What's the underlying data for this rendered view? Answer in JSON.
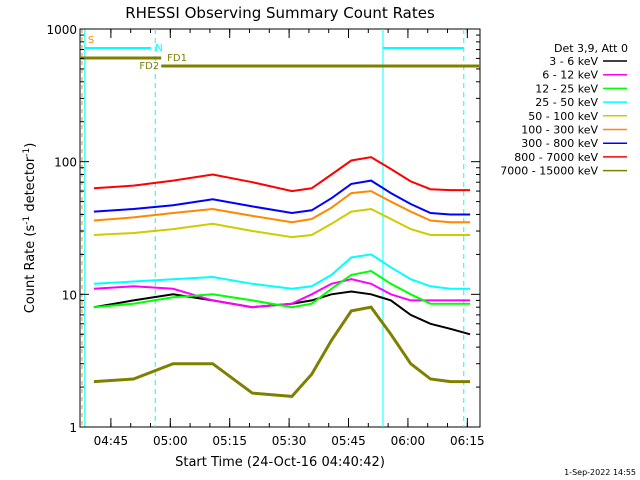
{
  "chart_data": {
    "type": "line",
    "title": "RHESSI Observing Summary Count Rates",
    "xlabel": "Start Time (24-Oct-16 04:40:42)",
    "ylabel_parts": [
      "Count Rate (s",
      "-1",
      " detector",
      "-1",
      ")"
    ],
    "y_scale": "log",
    "ylim": [
      1,
      1000
    ],
    "y_ticks": [
      {
        "value": 1,
        "label": "1"
      },
      {
        "value": 10,
        "label": "10"
      },
      {
        "value": 100,
        "label": "100"
      },
      {
        "value": 1000,
        "label": "1000"
      }
    ],
    "x_range_minutes": [
      -3.5,
      97.5
    ],
    "x_ticks": [
      {
        "value": 4.3,
        "label": "04:45"
      },
      {
        "value": 19.3,
        "label": "05:00"
      },
      {
        "value": 34.3,
        "label": "05:15"
      },
      {
        "value": 49.3,
        "label": "05:30"
      },
      {
        "value": 64.3,
        "label": "05:45"
      },
      {
        "value": 79.3,
        "label": "06:00"
      },
      {
        "value": 94.3,
        "label": "06:15"
      }
    ],
    "legend_header": "Det 3,9, Att 0",
    "legend_position": "right",
    "series": [
      {
        "name": "3 - 6 keV",
        "color": "#000000",
        "x": [
          0,
          10,
          20,
          30,
          40,
          50,
          55,
          60,
          65,
          70,
          75,
          80,
          85,
          90,
          95
        ],
        "values": [
          8,
          9,
          10,
          9,
          8,
          8.5,
          9,
          10,
          10.5,
          10,
          9,
          7,
          6,
          5.5,
          5
        ]
      },
      {
        "name": "6 - 12 keV",
        "color": "#ff00ff",
        "x": [
          0,
          10,
          20,
          30,
          40,
          50,
          55,
          60,
          65,
          70,
          75,
          80,
          85,
          90,
          95
        ],
        "values": [
          11,
          11.5,
          11,
          9,
          8,
          8.5,
          10,
          12,
          13,
          12,
          10,
          9,
          9,
          9,
          9
        ]
      },
      {
        "name": "12 - 25 keV",
        "color": "#00ff00",
        "x": [
          0,
          10,
          20,
          30,
          40,
          50,
          55,
          60,
          65,
          70,
          75,
          80,
          85,
          90,
          95
        ],
        "values": [
          8,
          8.5,
          9.5,
          10,
          9,
          8,
          8.5,
          11,
          14,
          15,
          12,
          10,
          8.5,
          8.5,
          8.5
        ]
      },
      {
        "name": "25 - 50 keV",
        "color": "#00ffff",
        "x": [
          0,
          10,
          20,
          30,
          40,
          50,
          55,
          60,
          65,
          70,
          75,
          80,
          85,
          90,
          95
        ],
        "values": [
          12,
          12.5,
          13,
          13.5,
          12,
          11,
          11.5,
          14,
          19,
          20,
          16,
          13,
          11.5,
          11,
          11
        ]
      },
      {
        "name": "50 - 100 keV",
        "color": "#cccc00",
        "x": [
          0,
          10,
          20,
          30,
          40,
          50,
          55,
          60,
          65,
          70,
          75,
          80,
          85,
          90,
          95
        ],
        "values": [
          28,
          29,
          31,
          34,
          30,
          27,
          28,
          34,
          42,
          44,
          37,
          31,
          28,
          28,
          28
        ]
      },
      {
        "name": "100 - 300 keV",
        "color": "#ff8800",
        "x": [
          0,
          10,
          20,
          30,
          40,
          50,
          55,
          60,
          65,
          70,
          75,
          80,
          85,
          90,
          95
        ],
        "values": [
          36,
          38,
          41,
          44,
          39,
          35,
          37,
          45,
          58,
          60,
          50,
          42,
          36,
          35,
          35
        ]
      },
      {
        "name": "300 - 800 keV",
        "color": "#0000ff",
        "x": [
          0,
          10,
          20,
          30,
          40,
          50,
          55,
          60,
          65,
          70,
          75,
          80,
          85,
          90,
          95
        ],
        "values": [
          42,
          44,
          47,
          52,
          46,
          41,
          43,
          53,
          68,
          72,
          58,
          48,
          41,
          40,
          40
        ]
      },
      {
        "name": "800 - 7000 keV",
        "color": "#ff0000",
        "x": [
          0,
          10,
          20,
          30,
          40,
          50,
          55,
          60,
          65,
          70,
          75,
          80,
          85,
          90,
          95
        ],
        "values": [
          63,
          66,
          72,
          80,
          70,
          60,
          63,
          80,
          102,
          108,
          88,
          71,
          62,
          61,
          61
        ]
      },
      {
        "name": "7000 - 15000 keV",
        "color": "#808000",
        "x": [
          0,
          10,
          20,
          30,
          40,
          50,
          55,
          60,
          65,
          70,
          75,
          80,
          85,
          90,
          95
        ],
        "values": [
          2.2,
          2.3,
          3,
          3,
          1.8,
          1.7,
          2.5,
          4.5,
          7.5,
          8,
          5,
          3,
          2.3,
          2.2,
          2.2
        ]
      }
    ],
    "annotations": [
      {
        "text": "S",
        "color": "#ff8800"
      },
      {
        "text": "N",
        "color": "#00ffff"
      },
      {
        "text": "FD1",
        "color": "#808000"
      },
      {
        "text": "FD2",
        "color": "#808000"
      }
    ],
    "footer_date": "1-Sep-2022 14:55"
  }
}
